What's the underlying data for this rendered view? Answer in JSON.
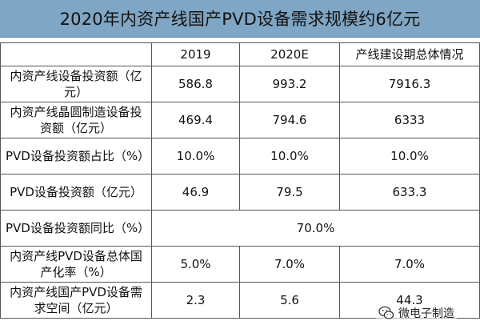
{
  "title": "2020年内资产线国产PVD设备需求规模约6亿元",
  "columns": [
    "",
    "2019",
    "2020E",
    "产线建设期总体情况"
  ],
  "rows": [
    {
      "label": "内资产线设备投资额（亿元）",
      "values": [
        "586.8",
        "993.2",
        "7916.3"
      ]
    },
    {
      "label": "内资产线晶圆制造设备投资额（亿元）",
      "values": [
        "469.4",
        "794.6",
        "6333"
      ]
    },
    {
      "label": "PVD设备投资额占比（%）",
      "values": [
        "10.0%",
        "10.0%",
        "10.0%"
      ]
    },
    {
      "label": "PVD设备投资额（亿元）",
      "values": [
        "46.9",
        "79.5",
        "633.3"
      ]
    },
    {
      "label": "PVD设备投资额同比（%）",
      "merged_value": "70.0%"
    },
    {
      "label": "内资产线PVD设备总体国产化率（%）",
      "values": [
        "5.0%",
        "7.0%",
        "7.0%"
      ]
    },
    {
      "label": "内资产线国产PVD设备需求空间（亿元）",
      "values": [
        "2.3",
        "5.6",
        "44.3"
      ]
    }
  ],
  "watermark": {
    "text": "微电子制造",
    "icon": "wechat-icon"
  },
  "colors": {
    "title_bg": "#7fa6c4",
    "border": "#555555"
  }
}
